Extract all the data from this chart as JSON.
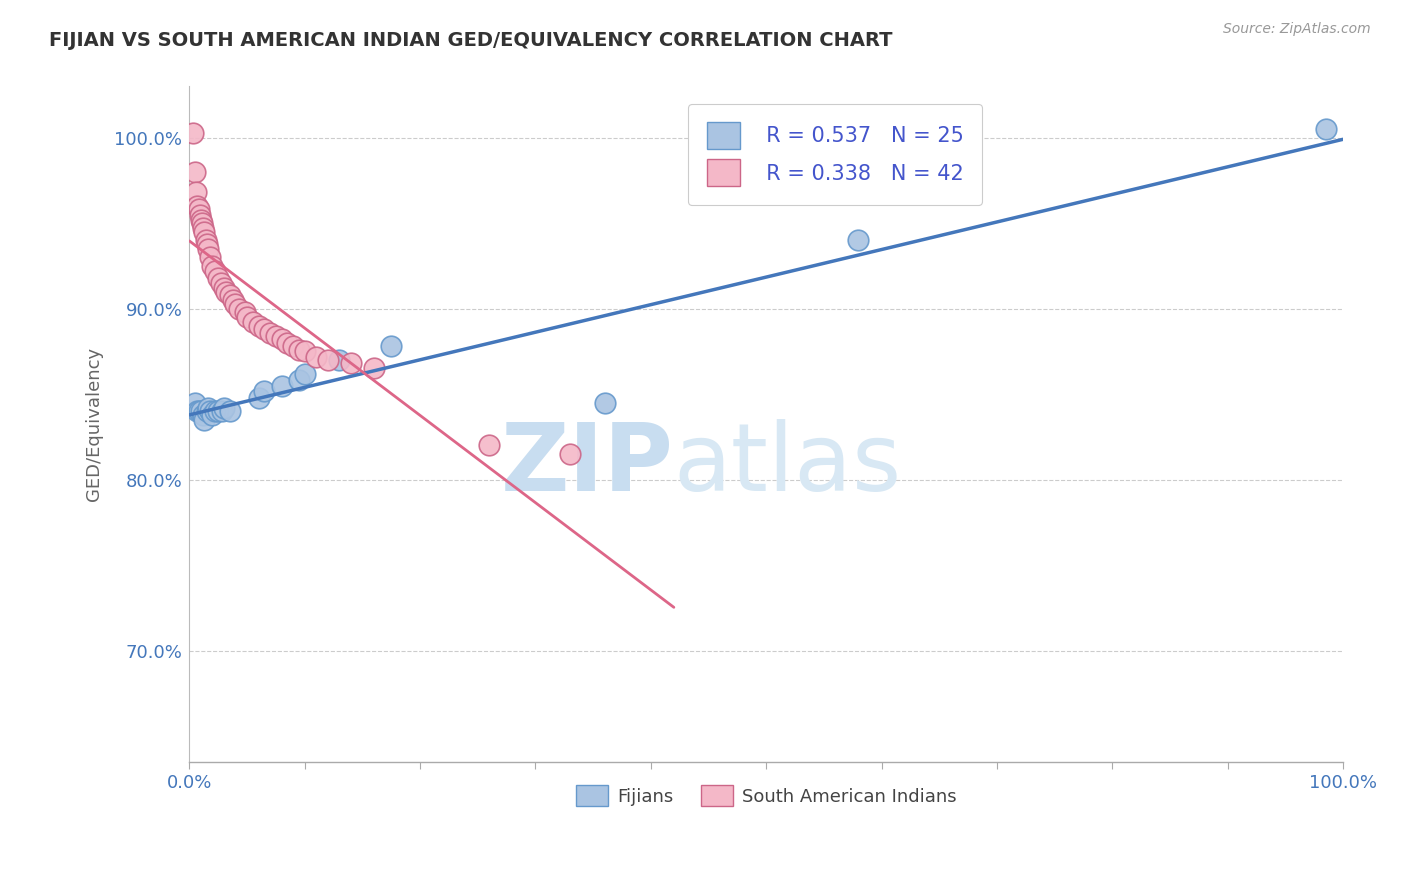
{
  "title": "FIJIAN VS SOUTH AMERICAN INDIAN GED/EQUIVALENCY CORRELATION CHART",
  "source_text": "Source: ZipAtlas.com",
  "ylabel": "GED/Equivalency",
  "xmin": 0.0,
  "xmax": 1.0,
  "ymin": 0.635,
  "ymax": 1.03,
  "yticks": [
    0.7,
    0.8,
    0.9,
    1.0
  ],
  "ytick_labels": [
    "70.0%",
    "80.0%",
    "90.0%",
    "100.0%"
  ],
  "xtick_positions": [
    0.0,
    0.1,
    0.2,
    0.3,
    0.4,
    0.5,
    0.6,
    0.7,
    0.8,
    0.9,
    1.0
  ],
  "fijian_color": "#aac4e2",
  "fijian_edge": "#6699cc",
  "south_am_color": "#f4b8c8",
  "south_am_edge": "#cc6688",
  "trend_fijian_color": "#4477bb",
  "trend_south_am_color": "#dd6688",
  "legend_R_fijian": "R = 0.537",
  "legend_N_fijian": "N = 25",
  "legend_R_south_am": "R = 0.338",
  "legend_N_south_am": "N = 42",
  "fijian_x": [
    0.005,
    0.007,
    0.008,
    0.01,
    0.012,
    0.013,
    0.015,
    0.016,
    0.018,
    0.02,
    0.022,
    0.025,
    0.028,
    0.03,
    0.035,
    0.06,
    0.065,
    0.08,
    0.095,
    0.1,
    0.13,
    0.175,
    0.36,
    0.58,
    0.985
  ],
  "fijian_y": [
    0.845,
    0.84,
    0.84,
    0.84,
    0.838,
    0.835,
    0.84,
    0.842,
    0.84,
    0.838,
    0.84,
    0.84,
    0.84,
    0.842,
    0.84,
    0.848,
    0.852,
    0.855,
    0.858,
    0.862,
    0.87,
    0.878,
    0.845,
    0.94,
    1.005
  ],
  "south_am_x": [
    0.003,
    0.005,
    0.006,
    0.007,
    0.008,
    0.009,
    0.01,
    0.011,
    0.012,
    0.013,
    0.014,
    0.015,
    0.016,
    0.018,
    0.02,
    0.022,
    0.025,
    0.027,
    0.03,
    0.032,
    0.035,
    0.038,
    0.04,
    0.043,
    0.048,
    0.05,
    0.055,
    0.06,
    0.065,
    0.07,
    0.075,
    0.08,
    0.085,
    0.09,
    0.095,
    0.1,
    0.11,
    0.12,
    0.14,
    0.16,
    0.26,
    0.33
  ],
  "south_am_y": [
    1.003,
    0.98,
    0.968,
    0.96,
    0.958,
    0.955,
    0.952,
    0.95,
    0.947,
    0.945,
    0.94,
    0.938,
    0.935,
    0.93,
    0.925,
    0.922,
    0.918,
    0.915,
    0.912,
    0.91,
    0.908,
    0.905,
    0.903,
    0.9,
    0.898,
    0.895,
    0.892,
    0.89,
    0.888,
    0.886,
    0.884,
    0.882,
    0.88,
    0.878,
    0.876,
    0.875,
    0.872,
    0.87,
    0.868,
    0.865,
    0.82,
    0.815
  ],
  "watermark_zip": "ZIP",
  "watermark_atlas": "atlas",
  "watermark_color": "#c8ddf0",
  "background_color": "#ffffff",
  "grid_color": "#cccccc"
}
